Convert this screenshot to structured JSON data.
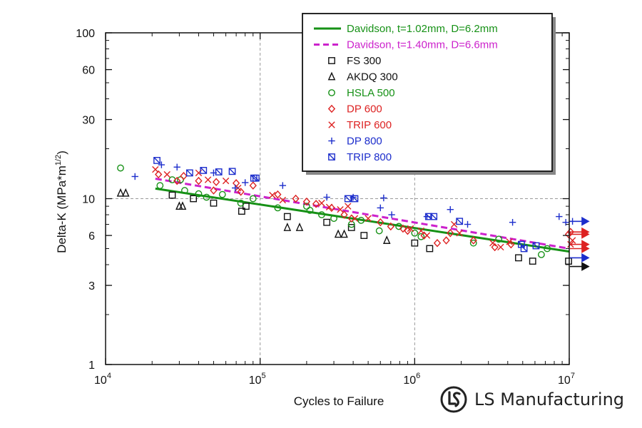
{
  "chart_data": {
    "type": "scatter",
    "xlabel": "Cycles to Failure",
    "ylabel": "Delta-K (MPa*m",
    "ylabel_sup": "1/2",
    "ylabel_suffix": ")",
    "x_scale": "log",
    "y_scale": "log",
    "xlim": [
      10000,
      10000000
    ],
    "ylim": [
      1,
      100
    ],
    "x_ticks": [
      {
        "value": 10000,
        "base": "10",
        "exp": "4"
      },
      {
        "value": 100000,
        "base": "10",
        "exp": "5"
      },
      {
        "value": 1000000,
        "base": "10",
        "exp": "6"
      },
      {
        "value": 10000000,
        "base": "10",
        "exp": "7"
      }
    ],
    "y_ticks": [
      {
        "value": 1,
        "label": "1"
      },
      {
        "value": 3,
        "label": "3"
      },
      {
        "value": 6,
        "label": "6"
      },
      {
        "value": 10,
        "label": "10"
      },
      {
        "value": 30,
        "label": "30"
      },
      {
        "value": 60,
        "label": "60"
      },
      {
        "value": 100,
        "label": "100"
      }
    ],
    "grid": "dashed at 10^5, 10^6 and 10",
    "legend_position": "top-right",
    "lines": [
      {
        "name": "Davidson, t=1.02mm, D=6.2mm",
        "style": "solid",
        "color": "#169116",
        "points": [
          [
            21000,
            11.5
          ],
          [
            10000000,
            4.8
          ]
        ]
      },
      {
        "name": "Davidson, t=1.40mm, D=6.6mm",
        "style": "dashed",
        "color": "#cc22cc",
        "points": [
          [
            21000,
            13.2
          ],
          [
            10000000,
            5.0
          ]
        ]
      }
    ],
    "series": [
      {
        "name": "FS 300",
        "marker": "square",
        "color": "#111111",
        "points": [
          [
            27000,
            10.5
          ],
          [
            37000,
            10.0
          ],
          [
            50000,
            9.4
          ],
          [
            76000,
            8.4
          ],
          [
            81000,
            9.0
          ],
          [
            150000,
            7.8
          ],
          [
            270000,
            7.2
          ],
          [
            390000,
            6.7
          ],
          [
            470000,
            6.0
          ],
          [
            1000000,
            5.4
          ],
          [
            1250000,
            5.0
          ],
          [
            4700000,
            4.4
          ],
          [
            5800000,
            4.2
          ],
          [
            9900000,
            4.2
          ]
        ]
      },
      {
        "name": "AKDQ 300",
        "marker": "triangle",
        "color": "#111111",
        "points": [
          [
            12500,
            10.8
          ],
          [
            13500,
            10.8
          ],
          [
            30000,
            9.0
          ],
          [
            31500,
            9.0
          ],
          [
            150000,
            6.7
          ],
          [
            180000,
            6.7
          ],
          [
            320000,
            6.1
          ],
          [
            350000,
            6.1
          ],
          [
            660000,
            5.6
          ]
        ]
      },
      {
        "name": "HSLA 500",
        "marker": "circle",
        "color": "#169116",
        "points": [
          [
            12500,
            15.3
          ],
          [
            22500,
            12.0
          ],
          [
            27000,
            13.0
          ],
          [
            30500,
            13.0
          ],
          [
            32500,
            11.2
          ],
          [
            40000,
            10.7
          ],
          [
            45000,
            10.2
          ],
          [
            57000,
            10.6
          ],
          [
            75000,
            9.4
          ],
          [
            90000,
            10.0
          ],
          [
            130000,
            8.8
          ],
          [
            200000,
            9.0
          ],
          [
            210000,
            8.5
          ],
          [
            250000,
            8.0
          ],
          [
            300000,
            7.6
          ],
          [
            390000,
            7.0
          ],
          [
            450000,
            7.4
          ],
          [
            590000,
            6.4
          ],
          [
            790000,
            6.8
          ],
          [
            1000000,
            6.2
          ],
          [
            1100000,
            5.9
          ],
          [
            2400000,
            5.4
          ],
          [
            3500000,
            5.7
          ],
          [
            6600000,
            4.6
          ],
          [
            7200000,
            5.0
          ]
        ]
      },
      {
        "name": "DP 600",
        "marker": "diamond",
        "color": "#dd2222",
        "points": [
          [
            22000,
            14.0
          ],
          [
            29000,
            12.8
          ],
          [
            32000,
            13.7
          ],
          [
            40000,
            12.8
          ],
          [
            50000,
            11.2
          ],
          [
            52000,
            12.6
          ],
          [
            70000,
            12.4
          ],
          [
            75000,
            11.0
          ],
          [
            90000,
            12.0
          ],
          [
            130000,
            10.6
          ],
          [
            170000,
            10.0
          ],
          [
            200000,
            9.6
          ],
          [
            230000,
            9.3
          ],
          [
            290000,
            8.8
          ],
          [
            350000,
            8.0
          ],
          [
            390000,
            7.6
          ],
          [
            600000,
            7.2
          ],
          [
            700000,
            6.8
          ],
          [
            840000,
            6.6
          ],
          [
            900000,
            6.4
          ],
          [
            1150000,
            6.0
          ],
          [
            1400000,
            5.4
          ],
          [
            1600000,
            5.6
          ],
          [
            1700000,
            6.2
          ],
          [
            2400000,
            5.6
          ],
          [
            3300000,
            5.1
          ],
          [
            4200000,
            5.3
          ],
          [
            9900000,
            6.1
          ],
          [
            10200000,
            6.3
          ]
        ]
      },
      {
        "name": "TRIP 600",
        "marker": "x",
        "color": "#dd2222",
        "points": [
          [
            21000,
            15.0
          ],
          [
            25000,
            14.0
          ],
          [
            40000,
            14.3
          ],
          [
            46000,
            13.0
          ],
          [
            60000,
            12.8
          ],
          [
            72000,
            11.6
          ],
          [
            120000,
            10.5
          ],
          [
            140000,
            9.8
          ],
          [
            250000,
            9.4
          ],
          [
            280000,
            8.9
          ],
          [
            330000,
            8.6
          ],
          [
            370000,
            9.0
          ],
          [
            410000,
            7.6
          ],
          [
            500000,
            7.6
          ],
          [
            940000,
            6.6
          ],
          [
            1100000,
            6.4
          ],
          [
            1200000,
            6.0
          ],
          [
            1800000,
            7.0
          ],
          [
            1950000,
            6.2
          ],
          [
            3200000,
            5.4
          ],
          [
            3600000,
            5.1
          ],
          [
            4100000,
            5.5
          ],
          [
            10200000,
            5.3
          ],
          [
            10500000,
            5.6
          ]
        ]
      },
      {
        "name": "DP 800",
        "marker": "plus",
        "color": "#1d2ecc",
        "points": [
          [
            15500,
            13.6
          ],
          [
            23000,
            16.0
          ],
          [
            29000,
            15.5
          ],
          [
            50000,
            14.3
          ],
          [
            69000,
            11.6
          ],
          [
            80000,
            12.5
          ],
          [
            140000,
            12.0
          ],
          [
            270000,
            10.2
          ],
          [
            400000,
            10.2
          ],
          [
            600000,
            8.8
          ],
          [
            630000,
            10.1
          ],
          [
            710000,
            8.0
          ],
          [
            1200000,
            7.8
          ],
          [
            1700000,
            8.6
          ],
          [
            2200000,
            7.0
          ],
          [
            4300000,
            7.2
          ],
          [
            8600000,
            7.8
          ],
          [
            9500000,
            7.2
          ],
          [
            10500000,
            7.3
          ]
        ]
      },
      {
        "name": "TRIP 800",
        "marker": "square-slash",
        "color": "#1d2ecc",
        "points": [
          [
            21500,
            17.0
          ],
          [
            35000,
            14.3
          ],
          [
            43000,
            14.8
          ],
          [
            54000,
            14.5
          ],
          [
            66000,
            14.6
          ],
          [
            91000,
            13.3
          ],
          [
            94000,
            13.3
          ],
          [
            370000,
            10.0
          ],
          [
            410000,
            10.0
          ],
          [
            1230000,
            7.8
          ],
          [
            1330000,
            7.8
          ],
          [
            1950000,
            7.3
          ],
          [
            4900000,
            5.3
          ],
          [
            5100000,
            5.0
          ],
          [
            6100000,
            5.2
          ]
        ]
      }
    ],
    "runouts": [
      {
        "y": 7.3,
        "color": "#1d2ecc"
      },
      {
        "y": 6.3,
        "color": "#dd2222"
      },
      {
        "y": 6.1,
        "color": "#dd2222"
      },
      {
        "y": 5.3,
        "color": "#dd2222"
      },
      {
        "y": 5.0,
        "color": "#dd2222"
      },
      {
        "y": 4.4,
        "color": "#1d2ecc"
      },
      {
        "y": 3.9,
        "color": "#111111"
      }
    ]
  },
  "legend": {
    "entries": [
      {
        "label": "Davidson, t=1.02mm, D=6.2mm",
        "marker": "line",
        "color": "#169116"
      },
      {
        "label": "Davidson, t=1.40mm, D=6.6mm",
        "marker": "dashed-line",
        "color": "#cc22cc"
      },
      {
        "label": "FS 300",
        "marker": "square",
        "color": "#111111"
      },
      {
        "label": "AKDQ 300",
        "marker": "triangle",
        "color": "#111111"
      },
      {
        "label": "HSLA 500",
        "marker": "circle",
        "color": "#169116"
      },
      {
        "label": "DP 600",
        "marker": "diamond",
        "color": "#dd2222"
      },
      {
        "label": "TRIP 600",
        "marker": "x",
        "color": "#dd2222"
      },
      {
        "label": "DP 800",
        "marker": "plus",
        "color": "#1d2ecc"
      },
      {
        "label": "TRIP 800",
        "marker": "square-slash",
        "color": "#1d2ecc"
      }
    ]
  },
  "brand": {
    "name": "LS Manufacturing",
    "logo_icon": "ls-logo-icon"
  }
}
